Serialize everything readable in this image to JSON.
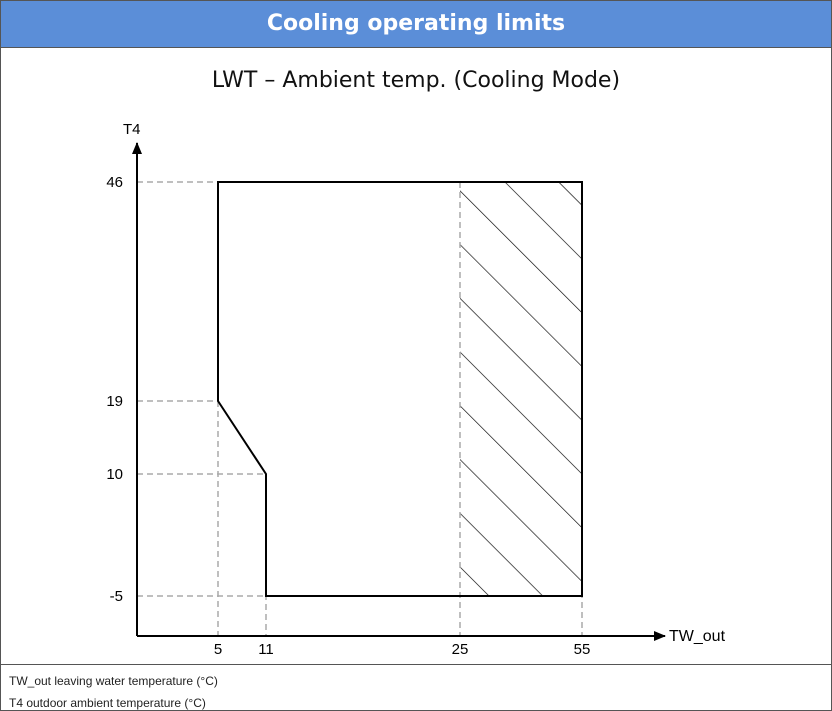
{
  "header": {
    "title": "Cooling operating limits"
  },
  "diagram": {
    "title": "LWT – Ambient temp. (Cooling Mode)",
    "x_axis_label": "TW_out",
    "y_axis_label": "T4",
    "xticks": [
      5,
      11,
      25,
      55
    ],
    "yticks": [
      46,
      19,
      10,
      -5
    ]
  },
  "notes": [
    "TW_out leaving water temperature (°C)",
    "T4 outdoor ambient temperature (°C)"
  ]
}
